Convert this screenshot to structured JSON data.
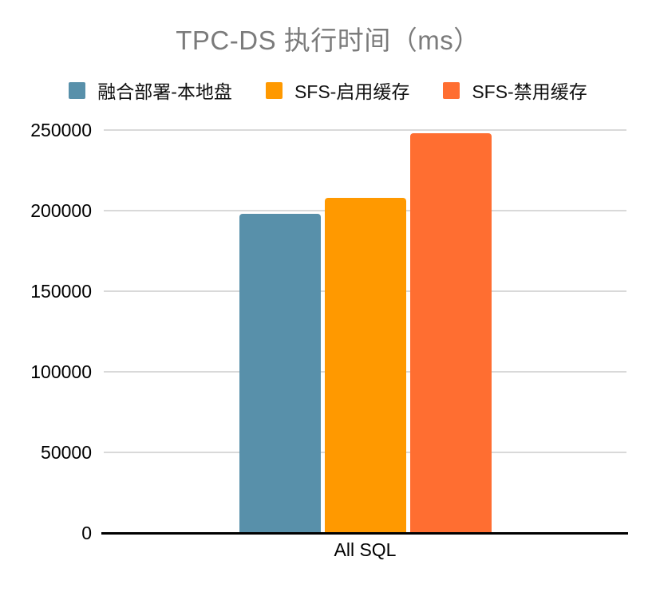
{
  "title": "TPC-DS 执行时间（ms）",
  "colors": {
    "background": "#ffffff",
    "title_text": "#7b7b7b",
    "axis_text": "#000000",
    "gridline": "#d9d9d9",
    "axis_line": "#000000"
  },
  "chart_data": {
    "type": "bar",
    "title": "TPC-DS 执行时间（ms）",
    "xlabel": "",
    "ylabel": "",
    "categories": [
      "All SQL"
    ],
    "series": [
      {
        "name": "融合部署-本地盘",
        "color": "#5890aa",
        "values": [
          198000
        ]
      },
      {
        "name": "SFS-启用缓存",
        "color": "#ff9900",
        "values": [
          208000
        ]
      },
      {
        "name": "SFS-禁用缓存",
        "color": "#ff6e31",
        "values": [
          248000
        ]
      }
    ],
    "ylim": [
      0,
      250000
    ],
    "y_ticks": [
      0,
      50000,
      100000,
      150000,
      200000,
      250000
    ],
    "y_tick_labels": [
      "0",
      "50000",
      "100000",
      "150000",
      "200000",
      "250000"
    ],
    "grid": true,
    "legend_position": "top"
  }
}
